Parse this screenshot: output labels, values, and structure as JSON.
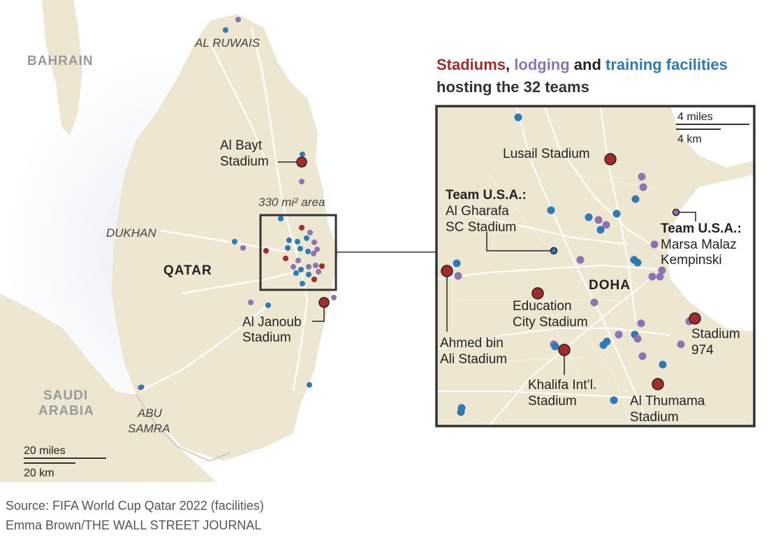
{
  "legend": {
    "stadiums": "Stadiums",
    "sep1": ", ",
    "lodging": "lodging",
    "and": " and ",
    "training": "training facilities",
    "line2": "hosting the 32 teams"
  },
  "colors": {
    "stadium": "#a52a2a",
    "lodging": "#8e73b4",
    "training": "#2f7ab5",
    "land": "#ede6d1",
    "road": "#ffffff",
    "label": "#222222",
    "country_label": "#9a9a9a"
  },
  "main_map": {
    "places": {
      "bahrain": "BAHRAIN",
      "saudi_line1": "SAUDI",
      "saudi_line2": "ARABIA",
      "qatar": "QATAR",
      "al_ruwais": "AL RUWAIS",
      "dukhan": "DUKHAN",
      "abu_line1": "ABU",
      "abu_line2": "SAMRA"
    },
    "stadiums": {
      "al_bayt_line1": "Al Bayt",
      "al_bayt_line2": "Stadium",
      "al_janoub_line1": "Al Janoub",
      "al_janoub_line2": "Stadium"
    },
    "area_label": "330 mi² area",
    "scale": {
      "miles": "20 miles",
      "km": "20 km"
    }
  },
  "inset": {
    "doha": "DOHA",
    "scale": {
      "miles": "4 miles",
      "km": "4 km"
    },
    "labels": {
      "lusail": "Lusail Stadium",
      "usa_training_title": "Team U.S.A.:",
      "usa_training_line1": "Al Gharafa",
      "usa_training_line2": "SC Stadium",
      "usa_lodging_title": "Team U.S.A.:",
      "usa_lodging_line1": "Marsa Malaz",
      "usa_lodging_line2": "Kempinski",
      "education_line1": "Education",
      "education_line2": "City Stadium",
      "ahmed_line1": "Ahmed bin",
      "ahmed_line2": "Ali Stadium",
      "khalifa_line1": "Khalifa Int’l.",
      "khalifa_line2": "Stadium",
      "thumama_line1": "Al Thumama",
      "thumama_line2": "Stadium",
      "stadium974_line1": "Stadium",
      "stadium974_line2": "974"
    }
  },
  "footer": {
    "source": "Source: FIFA World Cup Qatar 2022 (facilities)",
    "credit": "Emma Brown/THE WALL STREET JOURNAL"
  }
}
